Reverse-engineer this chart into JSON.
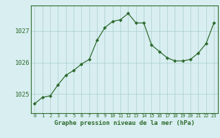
{
  "x": [
    0,
    1,
    2,
    3,
    4,
    5,
    6,
    7,
    8,
    9,
    10,
    11,
    12,
    13,
    14,
    15,
    16,
    17,
    18,
    19,
    20,
    21,
    22,
    23
  ],
  "y": [
    1024.7,
    1024.9,
    1024.95,
    1025.3,
    1025.6,
    1025.75,
    1025.95,
    1026.1,
    1026.7,
    1027.1,
    1027.3,
    1027.35,
    1027.55,
    1027.25,
    1027.25,
    1026.55,
    1026.35,
    1026.15,
    1026.05,
    1026.05,
    1026.1,
    1026.3,
    1026.6,
    1027.25
  ],
  "line_color": "#2d6a2d",
  "marker_color": "#2d6a2d",
  "bg_color": "#d8eef0",
  "grid_color": "#aacccc",
  "axis_color": "#2d6a2d",
  "xlabel": "Graphe pression niveau de la mer (hPa)",
  "ylim_min": 1024.4,
  "ylim_max": 1027.8,
  "ytick_values": [
    1025,
    1026,
    1027
  ],
  "fig_bg": "#d8eef0"
}
